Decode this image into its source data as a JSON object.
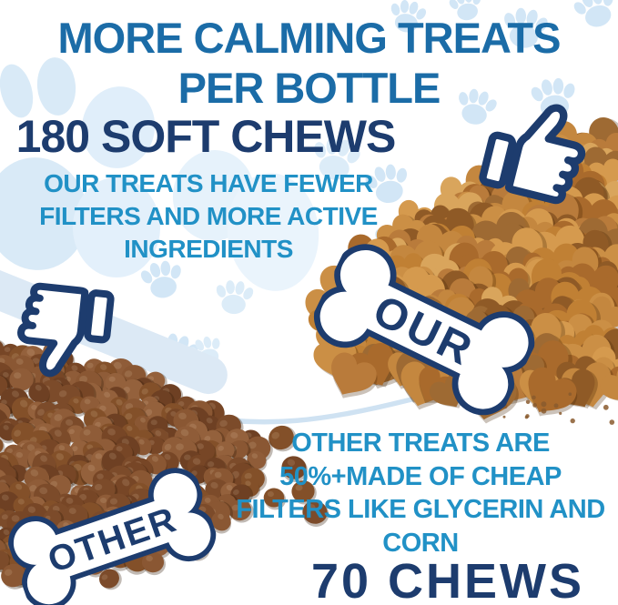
{
  "title": {
    "line1": "MORE CALMING TREATS",
    "line2": "PER BOTTLE"
  },
  "our": {
    "headline": "180 SOFT CHEWS",
    "body": [
      "OUR TREATS HAVE FEWER",
      "FILTERS AND MORE ACTIVE",
      "INGREDIENTS"
    ],
    "bone_label": "OUR"
  },
  "other": {
    "body": [
      "OTHER TREATS ARE",
      "50%+MADE OF CHEAP",
      "FILTERS LIKE GLYCERIN AND",
      "CORN"
    ],
    "headline": "70 CHEWS",
    "bone_label": "OTHER"
  },
  "icons": {
    "thumbs_up": "thumbs-up",
    "thumbs_down": "thumbs-down",
    "our_bone": "dog-bone",
    "other_bone": "dog-bone",
    "background": "paw-prints"
  },
  "colors": {
    "title_blue": "#1b6ca7",
    "navy": "#1d3c6e",
    "teal": "#2191c6",
    "paw_blue": "#d2e6f6",
    "paw_blue_light": "#e2eefa",
    "swoosh_blue": "#dce9f5",
    "treat_palette": [
      "#c08034",
      "#d59a4e",
      "#a96a2c",
      "#b97b3b",
      "#8f5a26",
      "#cb8f45",
      "#9e6a33",
      "#d9a55c",
      "#c4873f"
    ],
    "kibble_palette": [
      "#7c4b2a",
      "#8a5733",
      "#6e4023",
      "#94613c",
      "#835029",
      "#774626",
      "#8f5c38"
    ]
  }
}
